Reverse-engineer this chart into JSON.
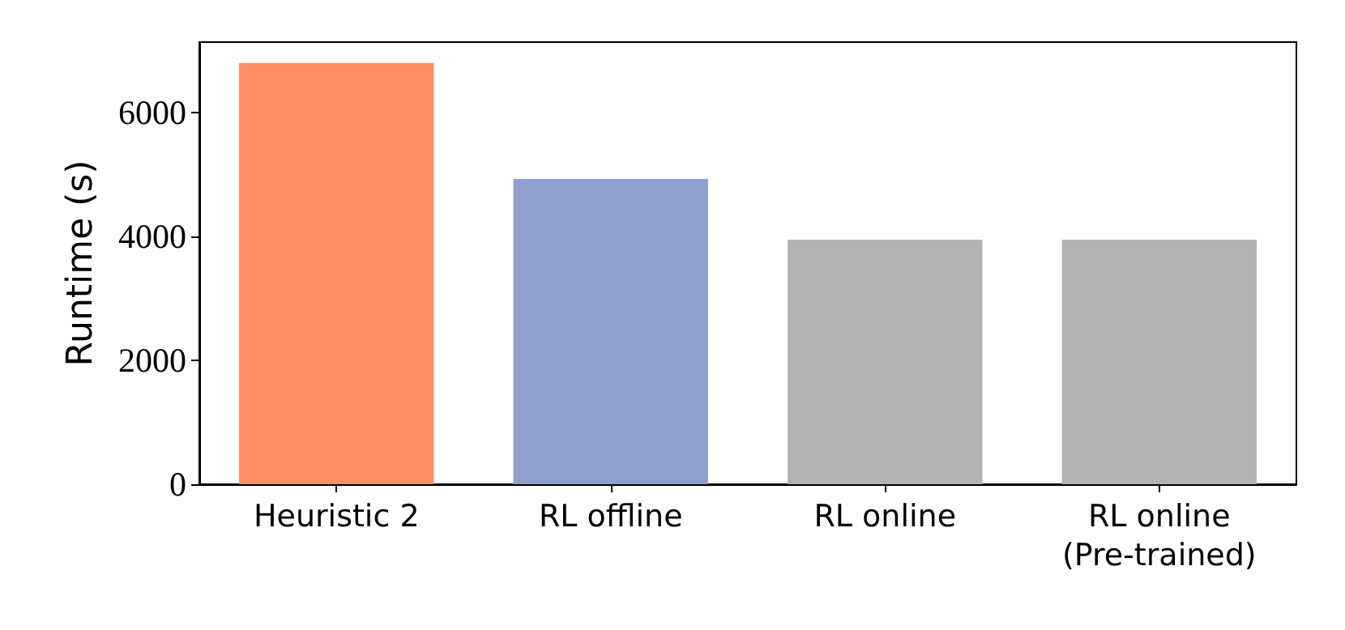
{
  "chart_data": {
    "type": "bar",
    "ylabel": "Runtime (s)",
    "categories": [
      "Heuristic 2",
      "RL offline",
      "RL online",
      "RL online\n(Pre-trained)"
    ],
    "values": [
      6800,
      4930,
      3950,
      3950
    ],
    "colors": [
      "#fc8d62",
      "#8da0cb",
      "#b3b3b3",
      "#b3b3b3"
    ],
    "ylim": [
      0,
      7140
    ],
    "yticks": [
      0,
      2000,
      4000,
      6000
    ],
    "grid": false
  }
}
